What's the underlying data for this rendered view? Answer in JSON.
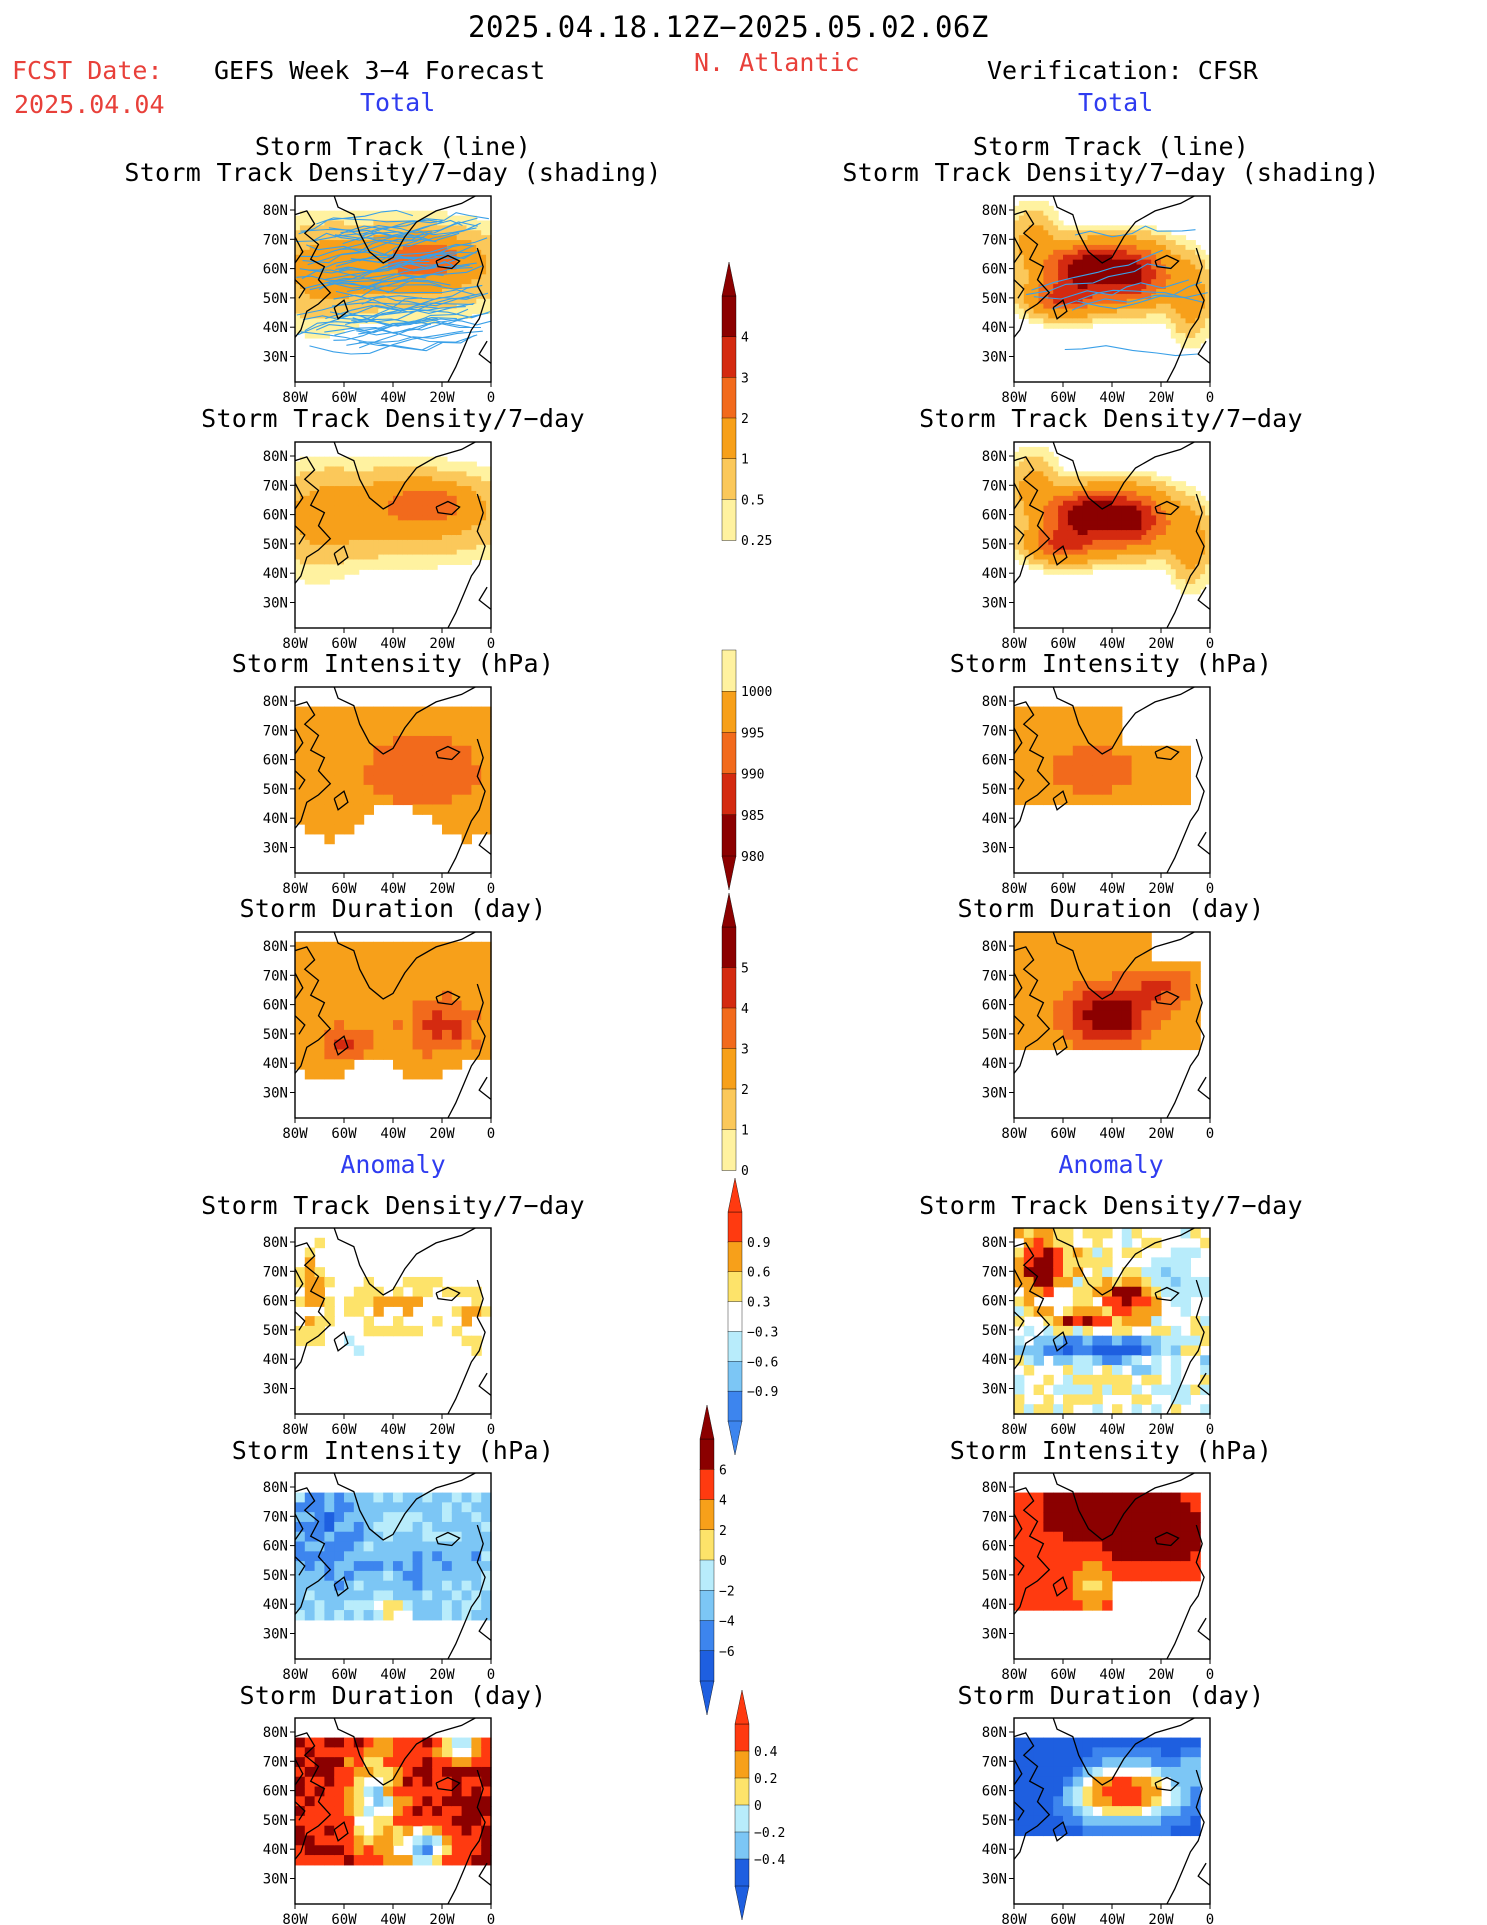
{
  "header": {
    "period": "2025.04.18.12Z−2025.05.02.06Z",
    "fcst_date_label": "FCST Date:",
    "fcst_date_value": "2025.04.04",
    "forecast_label": "GEFS Week 3−4 Forecast",
    "region": "N. Atlantic",
    "verification_label": "Verification: CFSR",
    "total_left": "Total",
    "total_right": "Total",
    "anomaly_left": "Anomaly",
    "anomaly_right": "Anomaly"
  },
  "panel_titles": {
    "track_line": "Storm Track (line)",
    "track_shading": "Storm Track Density/7−day (shading)",
    "density": "Storm Track Density/7−day",
    "intensity": "Storm Intensity (hPa)",
    "duration": "Storm Duration (day)"
  },
  "axes": {
    "lat_ticks": [
      "80N",
      "70N",
      "60N",
      "50N",
      "40N",
      "30N"
    ],
    "lon_ticks": [
      "80W",
      "60W",
      "40W",
      "20W",
      "0"
    ]
  },
  "colorbars": [
    {
      "id": "total-density",
      "labels": [
        "4",
        "3",
        "2",
        "1",
        "0.5",
        "0.25"
      ],
      "colors": [
        "#8b0000",
        "#d42a10",
        "#f26a1c",
        "#f7a01a",
        "#fbc85a",
        "#fff2a0"
      ]
    },
    {
      "id": "total-intensity",
      "labels": [
        "1000",
        "995",
        "990",
        "985",
        "980"
      ],
      "colors": [
        "#fff2a0",
        "#f7a01a",
        "#f26a1c",
        "#d42a10",
        "#8b0000"
      ]
    },
    {
      "id": "total-duration",
      "labels": [
        "5",
        "4",
        "3",
        "2",
        "1",
        "0"
      ],
      "colors": [
        "#8b0000",
        "#d42a10",
        "#f26a1c",
        "#f7a01a",
        "#fbc85a",
        "#fff2a0"
      ]
    },
    {
      "id": "anom-density",
      "labels": [
        "0.9",
        "0.6",
        "0.3",
        "−0.3",
        "−0.6",
        "−0.9"
      ],
      "colors": [
        "#ff3a10",
        "#f7a01a",
        "#fde36a",
        "#ffffff",
        "#b8ecfb",
        "#7cc6f5",
        "#3d85ee"
      ]
    },
    {
      "id": "anom-intensity",
      "labels": [
        "6",
        "4",
        "2",
        "0",
        "−2",
        "−4",
        "−6"
      ],
      "colors": [
        "#8b0000",
        "#ff3a10",
        "#f7a01a",
        "#fde36a",
        "#b8ecfb",
        "#7cc6f5",
        "#3d85ee",
        "#1e5fe0"
      ]
    },
    {
      "id": "anom-duration",
      "labels": [
        "0.4",
        "0.2",
        "0",
        "−0.2",
        "−0.4"
      ],
      "colors": [
        "#ff3a10",
        "#f7a01a",
        "#fde36a",
        "#b8ecfb",
        "#7cc6f5",
        "#1e5fe0"
      ]
    }
  ]
}
